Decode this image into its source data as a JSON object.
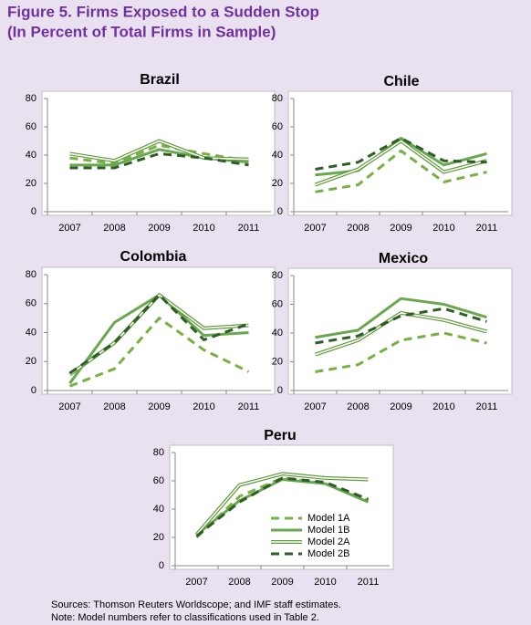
{
  "title": "Figure 5. Firms Exposed to a Sudden Stop",
  "subtitle": "(In Percent of Total Firms in Sample)",
  "notes": [
    "Sources: Thomson Reuters Worldscope; and IMF staff estimates.",
    "Note:  Model numbers refer to classifications used in Table 2."
  ],
  "chart_data": [
    {
      "type": "line",
      "title": "Brazil",
      "categories": [
        "2007",
        "2008",
        "2009",
        "2010",
        "2011"
      ],
      "ylim": [
        0,
        80
      ],
      "yticks": [
        0,
        20,
        40,
        60,
        80
      ],
      "series": [
        {
          "color": "#77b043",
          "style": "dashed",
          "values": [
            38,
            34,
            47,
            41,
            36
          ]
        },
        {
          "color": "#6aa84f",
          "style": "solid",
          "values": [
            33,
            33,
            44,
            38,
            35
          ]
        },
        {
          "color": "#5f9a3a",
          "style": "double",
          "values": [
            41,
            36,
            50,
            38,
            37
          ]
        },
        {
          "color": "#2f5d27",
          "style": "dashed",
          "values": [
            31,
            31,
            41,
            38,
            33
          ]
        }
      ]
    },
    {
      "type": "line",
      "title": "Chile",
      "categories": [
        "2007",
        "2008",
        "2009",
        "2010",
        "2011"
      ],
      "ylim": [
        0,
        80
      ],
      "yticks": [
        0,
        20,
        40,
        60,
        80
      ],
      "series": [
        {
          "color": "#77b043",
          "style": "dashed",
          "values": [
            14,
            19,
            43,
            21,
            28
          ]
        },
        {
          "color": "#6aa84f",
          "style": "solid",
          "values": [
            26,
            29,
            52,
            33,
            41
          ]
        },
        {
          "color": "#5f9a3a",
          "style": "double",
          "values": [
            19,
            30,
            50,
            28,
            36
          ]
        },
        {
          "color": "#2f5d27",
          "style": "dashed",
          "values": [
            30,
            35,
            52,
            36,
            35
          ]
        }
      ]
    },
    {
      "type": "line",
      "title": "Colombia",
      "categories": [
        "2007",
        "2008",
        "2009",
        "2010",
        "2011"
      ],
      "ylim": [
        0,
        80
      ],
      "yticks": [
        0,
        20,
        40,
        60,
        80
      ],
      "series": [
        {
          "color": "#77b043",
          "style": "dashed",
          "values": [
            3,
            15,
            50,
            28,
            13
          ]
        },
        {
          "color": "#6aa84f",
          "style": "solid",
          "values": [
            5,
            47,
            66,
            38,
            40
          ]
        },
        {
          "color": "#5f9a3a",
          "style": "double",
          "values": [
            11,
            33,
            66,
            43,
            45
          ]
        },
        {
          "color": "#2f5d27",
          "style": "dashed",
          "values": [
            12,
            33,
            66,
            35,
            46
          ]
        }
      ]
    },
    {
      "type": "line",
      "title": "Mexico",
      "categories": [
        "2007",
        "2008",
        "2009",
        "2010",
        "2011"
      ],
      "ylim": [
        0,
        80
      ],
      "yticks": [
        0,
        20,
        40,
        60,
        80
      ],
      "series": [
        {
          "color": "#77b043",
          "style": "dashed",
          "values": [
            13,
            18,
            35,
            40,
            33
          ]
        },
        {
          "color": "#6aa84f",
          "style": "solid",
          "values": [
            37,
            42,
            64,
            60,
            51
          ]
        },
        {
          "color": "#5f9a3a",
          "style": "double",
          "values": [
            25,
            35,
            54,
            49,
            41
          ]
        },
        {
          "color": "#2f5d27",
          "style": "dashed",
          "values": [
            33,
            38,
            52,
            57,
            48
          ]
        }
      ]
    },
    {
      "type": "line",
      "title": "Peru",
      "categories": [
        "2007",
        "2008",
        "2009",
        "2010",
        "2011"
      ],
      "ylim": [
        0,
        80
      ],
      "yticks": [
        0,
        20,
        40,
        60,
        80
      ],
      "legend": "center-right",
      "series": [
        {
          "name": "Model 1A",
          "color": "#77b043",
          "style": "dashed",
          "values": [
            20,
            49,
            62,
            58,
            46
          ]
        },
        {
          "name": "Model 1B",
          "color": "#6aa84f",
          "style": "solid",
          "values": [
            22,
            46,
            61,
            58,
            45
          ]
        },
        {
          "name": "Model 2A",
          "color": "#5f9a3a",
          "style": "double",
          "values": [
            22,
            57,
            65,
            62,
            61
          ]
        },
        {
          "name": "Model 2B",
          "color": "#2f5d27",
          "style": "dashed",
          "values": [
            21,
            45,
            62,
            59,
            47
          ]
        }
      ]
    }
  ]
}
